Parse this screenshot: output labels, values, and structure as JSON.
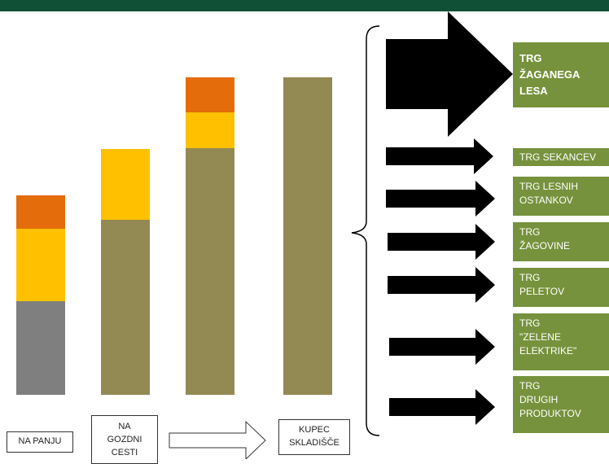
{
  "colors": {
    "topbar": "#0f5036",
    "wood": "#938953",
    "grey": "#7f7f7f",
    "yellow": "#ffc000",
    "orange": "#e46c0a",
    "market_bg": "#76923c",
    "market_text": "#ffffff",
    "arrow": "#000000"
  },
  "stages": [
    {
      "label": "NA PANJU"
    },
    {
      "label": "NA\nGOZDNI\nCESTI"
    },
    {
      "label": "KUPEC\nSKLADIŠČE"
    }
  ],
  "bars": [
    {
      "segments": [
        {
          "color": "grey",
          "value": 115
        },
        {
          "color": "yellow",
          "value": 89
        },
        {
          "color": "orange",
          "value": 41
        }
      ]
    },
    {
      "segments": [
        {
          "color": "wood",
          "value": 215
        },
        {
          "color": "yellow",
          "value": 87
        }
      ]
    },
    {
      "segments": [
        {
          "color": "wood",
          "value": 303
        },
        {
          "color": "yellow",
          "value": 44
        },
        {
          "color": "orange",
          "value": 43
        }
      ]
    },
    {
      "segments": [
        {
          "color": "wood",
          "value": 390
        }
      ]
    }
  ],
  "markets": [
    {
      "label": "TRG\nŽAGANEGA\nLESA",
      "size": "big"
    },
    {
      "label": "TRG SEKANCEV",
      "size": "small"
    },
    {
      "label": "TRG LESNIH\nOSTANKOV",
      "size": "small"
    },
    {
      "label": "TRG\nŽAGOVINE",
      "size": "small"
    },
    {
      "label": "TRG\nPELETOV",
      "size": "small"
    },
    {
      "label": "TRG\n\"ZELENE\nELEKTRIKE\"",
      "size": "small"
    },
    {
      "label": "TRG\nDRUGIH\nPRODUKTOV",
      "size": "small"
    }
  ]
}
